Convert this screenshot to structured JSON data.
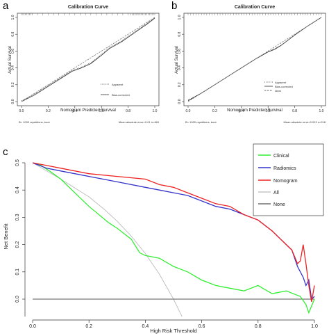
{
  "panel_labels": {
    "a": "a",
    "b": "b",
    "c": "c"
  },
  "chart_data": [
    {
      "type": "line",
      "panel": "a",
      "title": "Calibration Curve",
      "xlabel": "Nomogram Predicted Survival",
      "ylabel": "Actual Survival",
      "xlim": [
        0.0,
        1.0
      ],
      "ylim": [
        0.0,
        1.0
      ],
      "x_ticks": [
        "0.0",
        "0.2",
        "0.4",
        "0.6",
        "0.8",
        "1.0"
      ],
      "y_ticks": [
        "0.0",
        "0.2",
        "0.4",
        "0.6",
        "0.8",
        "1.0"
      ],
      "legend": [
        "Apparent",
        "Bias-corrected"
      ],
      "footnote_left": "B= 1000 repetitions, boot",
      "footnote_right": "Mean absolute error=0.01 n=469",
      "series": [
        {
          "name": "Apparent",
          "style": "dotted",
          "x": [
            0.0,
            0.1,
            0.2,
            0.3,
            0.38,
            0.45,
            0.52,
            0.6,
            0.66,
            0.75,
            0.85,
            0.95,
            1.0
          ],
          "y": [
            0.01,
            0.09,
            0.19,
            0.29,
            0.37,
            0.41,
            0.46,
            0.56,
            0.64,
            0.72,
            0.83,
            0.94,
            1.0
          ]
        },
        {
          "name": "Bias-corrected",
          "style": "solid",
          "x": [
            0.0,
            0.1,
            0.2,
            0.3,
            0.38,
            0.45,
            0.52,
            0.6,
            0.66,
            0.75,
            0.85,
            0.95,
            1.0
          ],
          "y": [
            0.0,
            0.08,
            0.18,
            0.28,
            0.36,
            0.4,
            0.45,
            0.55,
            0.63,
            0.71,
            0.82,
            0.93,
            0.99
          ]
        },
        {
          "name": "Ideal",
          "style": "dashed",
          "x": [
            0.0,
            1.0
          ],
          "y": [
            0.0,
            1.0
          ]
        }
      ]
    },
    {
      "type": "line",
      "panel": "b",
      "title": "Calibration Curve",
      "xlabel": "Nomogram Predicted Survival",
      "ylabel": "Actual Survival",
      "xlim": [
        0.0,
        1.0
      ],
      "ylim": [
        0.0,
        1.0
      ],
      "x_ticks": [
        "0.0",
        "0.2",
        "0.4",
        "0.6",
        "0.8",
        "1.0"
      ],
      "y_ticks": [
        "0.0",
        "0.2",
        "0.4",
        "0.6",
        "0.8",
        "1.0"
      ],
      "legend": [
        "Apparent",
        "Bias-corrected",
        "Ideal"
      ],
      "footnote_left": "B= 1000 repetitions, boot",
      "footnote_right": "Mean absolute error=0.013 n=218",
      "series": [
        {
          "name": "Apparent",
          "style": "dotted",
          "x": [
            0.0,
            0.1,
            0.2,
            0.3,
            0.4,
            0.5,
            0.6,
            0.65,
            0.7,
            0.8,
            0.9,
            1.0
          ],
          "y": [
            0.02,
            0.1,
            0.2,
            0.3,
            0.4,
            0.5,
            0.59,
            0.63,
            0.67,
            0.79,
            0.9,
            1.0
          ]
        },
        {
          "name": "Bias-corrected",
          "style": "solid",
          "x": [
            0.0,
            0.1,
            0.2,
            0.3,
            0.4,
            0.5,
            0.6,
            0.65,
            0.7,
            0.8,
            0.9,
            1.0
          ],
          "y": [
            0.01,
            0.1,
            0.2,
            0.3,
            0.4,
            0.5,
            0.59,
            0.62,
            0.67,
            0.79,
            0.9,
            1.0
          ]
        },
        {
          "name": "Ideal",
          "style": "dashed",
          "x": [
            0.0,
            1.0
          ],
          "y": [
            0.0,
            1.0
          ]
        }
      ]
    },
    {
      "type": "line",
      "panel": "c",
      "xlabel": "High Risk Threshold",
      "ylabel": "Net Benefit",
      "xlim": [
        0.0,
        1.0
      ],
      "ylim": [
        -0.05,
        0.5
      ],
      "x_ticks": [
        0.0,
        0.2,
        0.4,
        0.6,
        0.8,
        1.0
      ],
      "y_ticks": [
        0.0,
        0.1,
        0.2,
        0.3,
        0.4,
        0.5
      ],
      "legend": [
        "Clinical",
        "Radiomics",
        "Nomogram",
        "All",
        "None"
      ],
      "legend_position": "top-right",
      "series": [
        {
          "name": "Clinical",
          "color": "#33ee33",
          "x": [
            0.0,
            0.03,
            0.06,
            0.1,
            0.14,
            0.2,
            0.27,
            0.3,
            0.35,
            0.38,
            0.4,
            0.45,
            0.5,
            0.55,
            0.6,
            0.65,
            0.7,
            0.75,
            0.8,
            0.85,
            0.9,
            0.95,
            0.97,
            0.98,
            1.0
          ],
          "y": [
            0.5,
            0.49,
            0.47,
            0.44,
            0.4,
            0.34,
            0.28,
            0.26,
            0.22,
            0.17,
            0.16,
            0.15,
            0.12,
            0.1,
            0.07,
            0.05,
            0.04,
            0.03,
            0.05,
            0.02,
            0.03,
            0.01,
            -0.02,
            -0.05,
            0.0
          ]
        },
        {
          "name": "Radiomics",
          "color": "#3333cc",
          "x": [
            0.0,
            0.05,
            0.1,
            0.2,
            0.3,
            0.4,
            0.45,
            0.5,
            0.55,
            0.6,
            0.65,
            0.7,
            0.75,
            0.8,
            0.85,
            0.88,
            0.9,
            0.92,
            0.94,
            0.96,
            0.97,
            0.98,
            0.99,
            1.0
          ],
          "y": [
            0.5,
            0.48,
            0.47,
            0.45,
            0.43,
            0.41,
            0.4,
            0.39,
            0.38,
            0.36,
            0.34,
            0.33,
            0.31,
            0.29,
            0.25,
            0.22,
            0.2,
            0.18,
            0.12,
            0.08,
            0.05,
            0.07,
            0.0,
            0.01
          ]
        },
        {
          "name": "Nomogram",
          "color": "#ee2222",
          "x": [
            0.0,
            0.05,
            0.1,
            0.2,
            0.3,
            0.4,
            0.45,
            0.5,
            0.55,
            0.6,
            0.65,
            0.7,
            0.75,
            0.8,
            0.85,
            0.88,
            0.9,
            0.92,
            0.94,
            0.95,
            0.96,
            0.97,
            0.98,
            0.99,
            1.0
          ],
          "y": [
            0.5,
            0.49,
            0.48,
            0.46,
            0.45,
            0.44,
            0.42,
            0.41,
            0.39,
            0.37,
            0.35,
            0.34,
            0.31,
            0.29,
            0.25,
            0.22,
            0.2,
            0.18,
            0.13,
            0.14,
            0.2,
            0.13,
            0.05,
            -0.01,
            0.05
          ]
        },
        {
          "name": "All",
          "color": "#bbbbbb",
          "x": [
            0.0,
            0.1,
            0.2,
            0.25,
            0.3,
            0.35,
            0.4,
            0.45,
            0.5,
            0.53
          ],
          "y": [
            0.5,
            0.44,
            0.375,
            0.333,
            0.286,
            0.231,
            0.167,
            0.091,
            0.0,
            -0.064
          ]
        },
        {
          "name": "None",
          "color": "#555555",
          "x": [
            0.0,
            1.0
          ],
          "y": [
            0.0,
            0.0
          ]
        }
      ]
    }
  ]
}
